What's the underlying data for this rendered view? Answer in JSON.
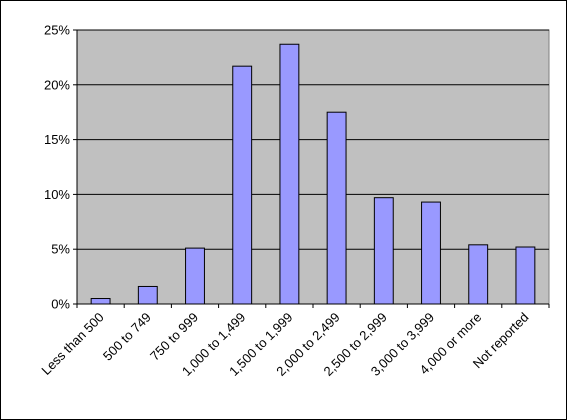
{
  "chart_data": {
    "type": "bar",
    "categories": [
      "Less than 500",
      "500 to 749",
      "750 to 999",
      "1,000 to 1,499",
      "1,500 to 1,999",
      "2,000 to 2,499",
      "2,500 to 2,999",
      "3,000 to 3,999",
      "4,000 or more",
      "Not reported"
    ],
    "series": [
      {
        "values": [
          0.5,
          1.6,
          5.1,
          21.7,
          23.7,
          17.5,
          9.7,
          9.3,
          5.4,
          5.2
        ]
      }
    ],
    "y_ticks": [
      "0%",
      "5%",
      "10%",
      "15%",
      "20%",
      "25%"
    ],
    "ylim": [
      0,
      25
    ],
    "y_unit": "%",
    "grid": true,
    "legend": "none",
    "colors": {
      "bar_fill": "#9999ff",
      "bar_stroke": "#000000",
      "plot_bg": "#c0c0c0",
      "gridline": "#000000"
    }
  }
}
